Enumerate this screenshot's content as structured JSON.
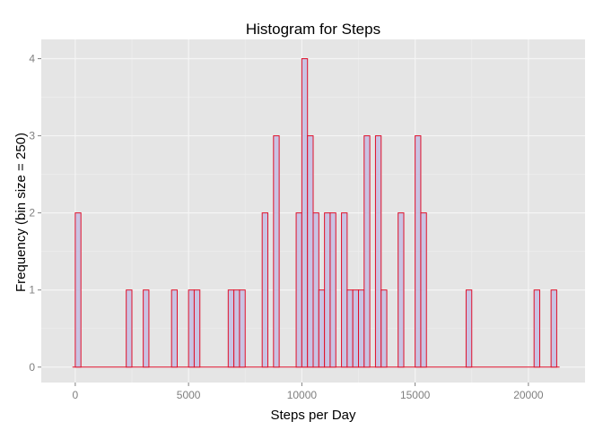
{
  "chart_data": {
    "type": "bar",
    "title": "Histogram for Steps",
    "xlabel": "Steps per Day",
    "ylabel": "Frequency (bin size = 250)",
    "bin_size": 250,
    "xlim": [
      -1500,
      22500
    ],
    "ylim": [
      -0.2,
      4.25
    ],
    "x_ticks": [
      0,
      5000,
      10000,
      15000,
      20000
    ],
    "x_tick_labels": [
      "0",
      "5000",
      "10000",
      "15000",
      "20000"
    ],
    "y_ticks": [
      0,
      1,
      2,
      3,
      4
    ],
    "y_tick_labels": [
      "0",
      "1",
      "2",
      "3",
      "4"
    ],
    "grid": true,
    "bin_range": [
      -125,
      21375
    ],
    "bins": [
      {
        "x": 125,
        "count": 2
      },
      {
        "x": 2375,
        "count": 1
      },
      {
        "x": 3125,
        "count": 1
      },
      {
        "x": 4375,
        "count": 1
      },
      {
        "x": 5125,
        "count": 1
      },
      {
        "x": 5375,
        "count": 1
      },
      {
        "x": 6875,
        "count": 1
      },
      {
        "x": 7125,
        "count": 1
      },
      {
        "x": 7375,
        "count": 1
      },
      {
        "x": 8375,
        "count": 2
      },
      {
        "x": 8875,
        "count": 3
      },
      {
        "x": 9875,
        "count": 2
      },
      {
        "x": 10125,
        "count": 4
      },
      {
        "x": 10375,
        "count": 3
      },
      {
        "x": 10625,
        "count": 2
      },
      {
        "x": 10875,
        "count": 1
      },
      {
        "x": 11125,
        "count": 2
      },
      {
        "x": 11375,
        "count": 2
      },
      {
        "x": 11875,
        "count": 2
      },
      {
        "x": 12125,
        "count": 1
      },
      {
        "x": 12375,
        "count": 1
      },
      {
        "x": 12625,
        "count": 1
      },
      {
        "x": 12875,
        "count": 3
      },
      {
        "x": 13375,
        "count": 3
      },
      {
        "x": 13625,
        "count": 1
      },
      {
        "x": 14375,
        "count": 2
      },
      {
        "x": 15125,
        "count": 3
      },
      {
        "x": 15375,
        "count": 2
      },
      {
        "x": 17375,
        "count": 1
      },
      {
        "x": 20375,
        "count": 1
      },
      {
        "x": 21125,
        "count": 1
      }
    ],
    "colors": {
      "panel": "#e5e5e5",
      "grid_major": "#f5f5f5",
      "grid_minor": "#ededed",
      "bar_fill": "#c9c3e3",
      "bar_stroke": "#e0102a",
      "tick_text": "#7f7f7f",
      "title_text": "#000000"
    }
  }
}
